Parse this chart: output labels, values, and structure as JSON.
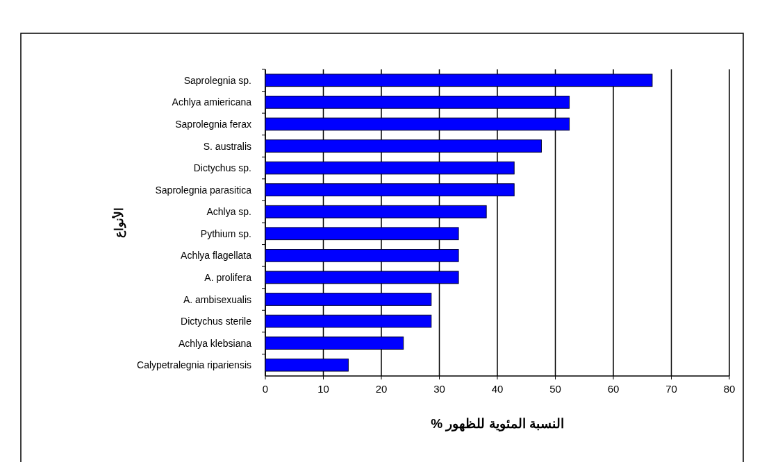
{
  "chart_data": {
    "type": "bar",
    "orientation": "horizontal",
    "xlabel": "النسبة المئوية للظهور %",
    "ylabel": "الأنواع",
    "categories": [
      "Saprolegnia sp.",
      "Achlya amiericana",
      "Saprolegnia ferax",
      "S. australis",
      "Dictychus sp.",
      "Saprolegnia parasitica",
      "Achlya sp.",
      "Pythium sp.",
      "Achlya flagellata",
      "A. prolifera",
      "A. ambisexualis",
      "Dictychus sterile",
      "Achlya klebsiana",
      "Calypetralegnia ripariensis"
    ],
    "values": [
      66.7,
      52.4,
      52.4,
      47.6,
      42.9,
      42.9,
      38.1,
      33.3,
      33.3,
      33.3,
      28.6,
      28.6,
      23.8,
      14.3
    ],
    "color": "#0000ff",
    "xlim": [
      0,
      80
    ],
    "xticks": [
      0,
      10,
      20,
      30,
      40,
      50,
      60,
      70,
      80
    ],
    "grid": "x"
  }
}
